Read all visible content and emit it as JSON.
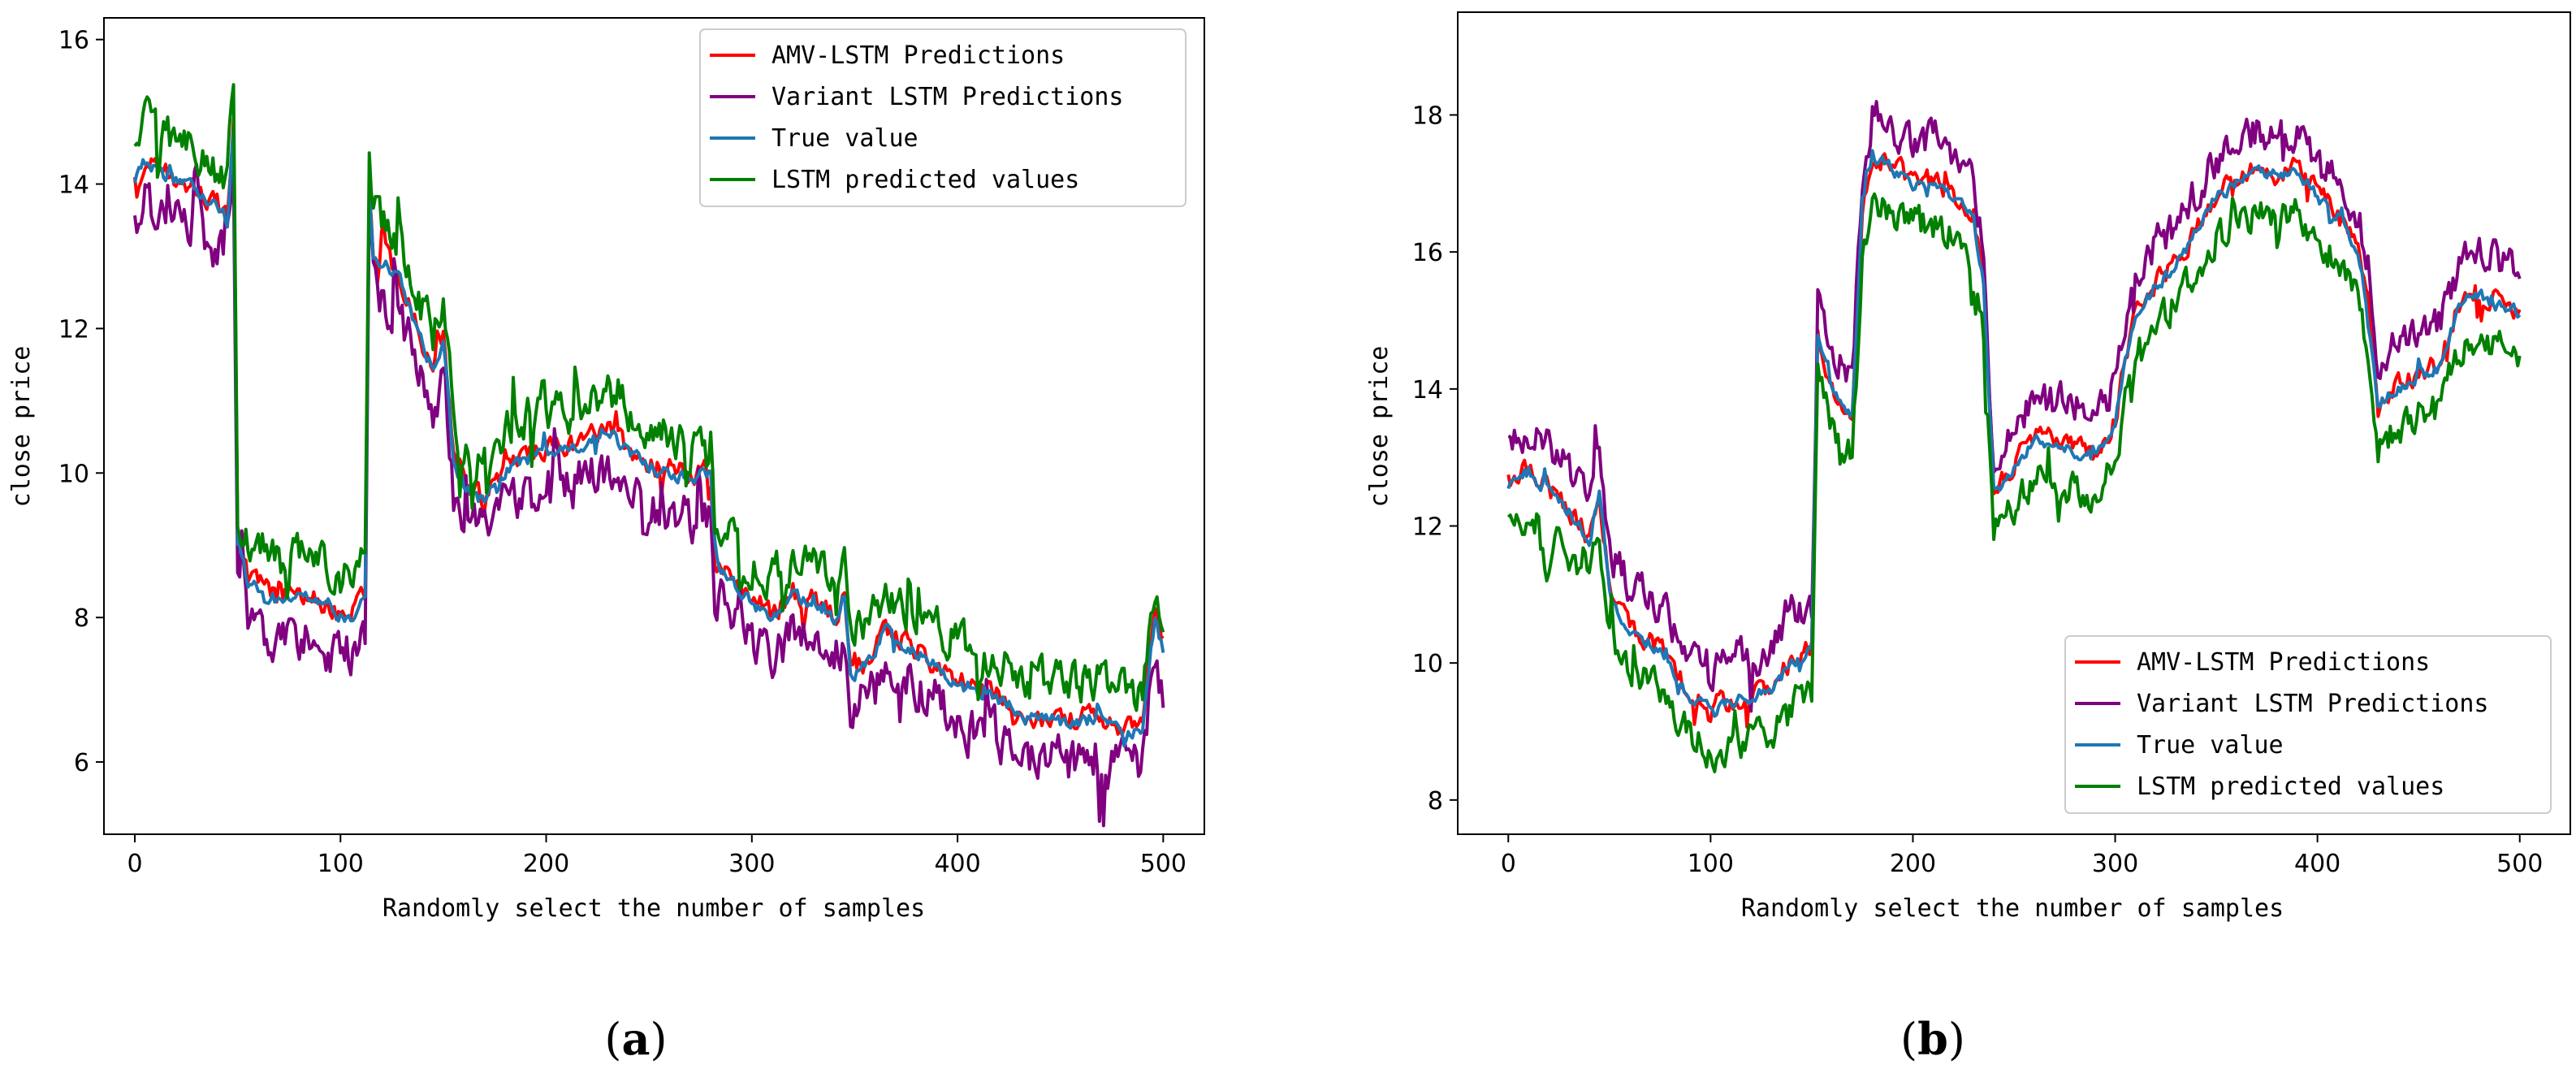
{
  "chart_data": [
    {
      "type": "line",
      "panel_label": "a",
      "xlabel": "Randomly select the number of samples",
      "ylabel": "close price",
      "xlim": [
        -15,
        520
      ],
      "ylim": [
        5.0,
        16.3
      ],
      "xticks": [
        0,
        100,
        200,
        300,
        400,
        500
      ],
      "yticks": [
        6,
        8,
        10,
        12,
        14,
        16
      ],
      "legend_position": "upper right",
      "series": [
        {
          "name": "AMV-LSTM Predictions",
          "color": "#ff0000"
        },
        {
          "name": "Variant LSTM Predictions",
          "color": "#800080"
        },
        {
          "name": "True value",
          "color": "#1f77b4"
        },
        {
          "name": "LSTM predicted values",
          "color": "#008000"
        }
      ],
      "true_anchors": [
        [
          0,
          14.0
        ],
        [
          5,
          14.3
        ],
        [
          15,
          14.1
        ],
        [
          25,
          14.0
        ],
        [
          35,
          13.8
        ],
        [
          45,
          13.5
        ],
        [
          48,
          14.8
        ],
        [
          50,
          9.0
        ],
        [
          55,
          8.5
        ],
        [
          62,
          8.4
        ],
        [
          70,
          8.2
        ],
        [
          80,
          8.3
        ],
        [
          90,
          8.2
        ],
        [
          100,
          8.0
        ],
        [
          105,
          8.0
        ],
        [
          112,
          8.3
        ],
        [
          114,
          14.0
        ],
        [
          116,
          13.0
        ],
        [
          125,
          12.8
        ],
        [
          130,
          12.6
        ],
        [
          140,
          11.8
        ],
        [
          145,
          11.4
        ],
        [
          150,
          11.8
        ],
        [
          155,
          10.2
        ],
        [
          160,
          9.8
        ],
        [
          170,
          9.6
        ],
        [
          180,
          10.0
        ],
        [
          190,
          10.2
        ],
        [
          200,
          10.3
        ],
        [
          210,
          10.3
        ],
        [
          220,
          10.4
        ],
        [
          230,
          10.6
        ],
        [
          240,
          10.3
        ],
        [
          250,
          10.1
        ],
        [
          260,
          10.0
        ],
        [
          270,
          9.9
        ],
        [
          280,
          10.0
        ],
        [
          282,
          8.8
        ],
        [
          290,
          8.5
        ],
        [
          300,
          8.2
        ],
        [
          310,
          8.0
        ],
        [
          320,
          8.3
        ],
        [
          330,
          8.2
        ],
        [
          340,
          8.0
        ],
        [
          345,
          8.2
        ],
        [
          348,
          7.2
        ],
        [
          355,
          7.3
        ],
        [
          365,
          7.8
        ],
        [
          375,
          7.6
        ],
        [
          385,
          7.4
        ],
        [
          395,
          7.2
        ],
        [
          405,
          7.0
        ],
        [
          415,
          6.9
        ],
        [
          425,
          6.8
        ],
        [
          435,
          6.6
        ],
        [
          445,
          6.6
        ],
        [
          455,
          6.5
        ],
        [
          465,
          6.6
        ],
        [
          475,
          6.5
        ],
        [
          485,
          6.4
        ],
        [
          490,
          6.5
        ],
        [
          496,
          8.0
        ],
        [
          500,
          7.5
        ]
      ],
      "offsets": {
        "AMV-LSTM Predictions": 0.05,
        "Variant LSTM Predictions": -0.5,
        "True value": 0.0,
        "LSTM predicted values": 0.55
      },
      "noise_amplitude": {
        "AMV-LSTM Predictions": 0.25,
        "Variant LSTM Predictions": 0.55,
        "True value": 0.15,
        "LSTM predicted values": 0.45
      }
    },
    {
      "type": "line",
      "panel_label": "b",
      "xlabel": "Randomly select the number of samples",
      "ylabel": "close price",
      "xlim": [
        -25,
        525
      ],
      "ylim": [
        7.5,
        19.5
      ],
      "xticks": [
        0,
        100,
        200,
        300,
        400,
        500
      ],
      "yticks": [
        8,
        10,
        12,
        14,
        16,
        18
      ],
      "legend_position": "lower right",
      "series": [
        {
          "name": "AMV-LSTM Predictions",
          "color": "#ff0000"
        },
        {
          "name": "Variant LSTM Predictions",
          "color": "#800080"
        },
        {
          "name": "True value",
          "color": "#1f77b4"
        },
        {
          "name": "LSTM predicted values",
          "color": "#008000"
        }
      ],
      "true_anchors": [
        [
          0,
          12.6
        ],
        [
          10,
          12.8
        ],
        [
          20,
          12.5
        ],
        [
          30,
          12.2
        ],
        [
          40,
          11.8
        ],
        [
          45,
          12.5
        ],
        [
          50,
          11.0
        ],
        [
          60,
          10.5
        ],
        [
          70,
          10.3
        ],
        [
          80,
          10.0
        ],
        [
          90,
          9.5
        ],
        [
          100,
          9.3
        ],
        [
          110,
          9.4
        ],
        [
          120,
          9.5
        ],
        [
          130,
          9.6
        ],
        [
          140,
          10.0
        ],
        [
          150,
          10.2
        ],
        [
          153,
          14.8
        ],
        [
          160,
          14.0
        ],
        [
          170,
          13.6
        ],
        [
          175,
          16.5
        ],
        [
          180,
          17.4
        ],
        [
          190,
          17.2
        ],
        [
          200,
          17.0
        ],
        [
          210,
          17.0
        ],
        [
          220,
          16.8
        ],
        [
          230,
          16.5
        ],
        [
          235,
          15.5
        ],
        [
          240,
          12.5
        ],
        [
          250,
          12.8
        ],
        [
          260,
          13.3
        ],
        [
          270,
          13.2
        ],
        [
          280,
          13.1
        ],
        [
          290,
          13.0
        ],
        [
          300,
          13.5
        ],
        [
          305,
          14.5
        ],
        [
          310,
          15.0
        ],
        [
          320,
          15.5
        ],
        [
          330,
          15.8
        ],
        [
          340,
          16.3
        ],
        [
          350,
          16.8
        ],
        [
          360,
          17.0
        ],
        [
          370,
          17.2
        ],
        [
          380,
          17.1
        ],
        [
          390,
          17.2
        ],
        [
          400,
          16.8
        ],
        [
          410,
          16.5
        ],
        [
          420,
          16.0
        ],
        [
          425,
          15.2
        ],
        [
          430,
          13.8
        ],
        [
          440,
          14.0
        ],
        [
          450,
          14.2
        ],
        [
          460,
          14.3
        ],
        [
          470,
          15.2
        ],
        [
          480,
          15.4
        ],
        [
          490,
          15.2
        ],
        [
          500,
          15.1
        ]
      ],
      "offsets": {
        "AMV-LSTM Predictions": 0.05,
        "Variant LSTM Predictions": 0.6,
        "True value": 0.0,
        "LSTM predicted values": -0.6
      },
      "noise_amplitude": {
        "AMV-LSTM Predictions": 0.25,
        "Variant LSTM Predictions": 0.45,
        "True value": 0.15,
        "LSTM predicted values": 0.4
      }
    }
  ]
}
